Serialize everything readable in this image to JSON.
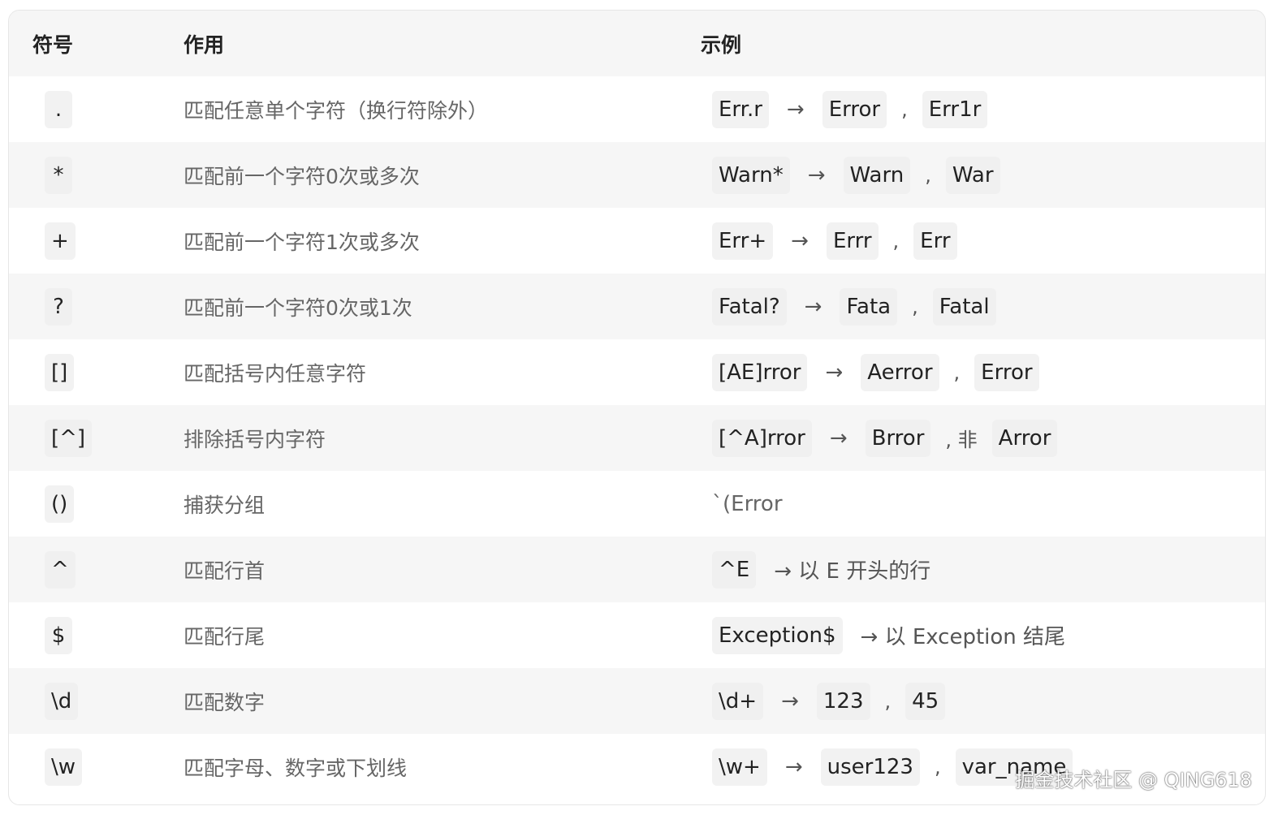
{
  "headers": {
    "symbol": "符号",
    "action": "作用",
    "example": "示例"
  },
  "rows": [
    {
      "symbol": ".",
      "action": "匹配任意单个字符（换行符除外）",
      "example": [
        {
          "t": "code",
          "v": "Err.r"
        },
        {
          "t": "arrow",
          "v": "→"
        },
        {
          "t": "code",
          "v": "Error"
        },
        {
          "t": "comma",
          "v": ","
        },
        {
          "t": "code",
          "v": "Err1r"
        }
      ]
    },
    {
      "symbol": "*",
      "action": "匹配前一个字符0次或多次",
      "example": [
        {
          "t": "code",
          "v": "Warn*"
        },
        {
          "t": "arrow",
          "v": "→"
        },
        {
          "t": "code",
          "v": "Warn"
        },
        {
          "t": "comma",
          "v": ","
        },
        {
          "t": "code",
          "v": "War"
        }
      ]
    },
    {
      "symbol": "+",
      "action": "匹配前一个字符1次或多次",
      "example": [
        {
          "t": "code",
          "v": "Err+"
        },
        {
          "t": "arrow",
          "v": "→"
        },
        {
          "t": "code",
          "v": "Errr"
        },
        {
          "t": "comma",
          "v": ","
        },
        {
          "t": "code",
          "v": "Err"
        }
      ]
    },
    {
      "symbol": "?",
      "action": "匹配前一个字符0次或1次",
      "example": [
        {
          "t": "code",
          "v": "Fatal?"
        },
        {
          "t": "arrow",
          "v": "→"
        },
        {
          "t": "code",
          "v": "Fata"
        },
        {
          "t": "comma",
          "v": ","
        },
        {
          "t": "code",
          "v": "Fatal"
        }
      ]
    },
    {
      "symbol": "[]",
      "action": "匹配括号内任意字符",
      "example": [
        {
          "t": "code",
          "v": "[AE]rror"
        },
        {
          "t": "arrow",
          "v": "→"
        },
        {
          "t": "code",
          "v": "Aerror"
        },
        {
          "t": "comma",
          "v": ","
        },
        {
          "t": "code",
          "v": "Error"
        }
      ]
    },
    {
      "symbol": "[^]",
      "action": "排除括号内字符",
      "example": [
        {
          "t": "code",
          "v": "[^A]rror"
        },
        {
          "t": "arrow",
          "v": "→"
        },
        {
          "t": "code",
          "v": "Brror"
        },
        {
          "t": "comma",
          "v": ", 非"
        },
        {
          "t": "code",
          "v": "Arror"
        }
      ]
    },
    {
      "symbol": "()",
      "action": "捕获分组",
      "example": [
        {
          "t": "plain",
          "v": "`(Error"
        }
      ]
    },
    {
      "symbol": "^",
      "action": "匹配行首",
      "example": [
        {
          "t": "code",
          "v": "^E"
        },
        {
          "t": "text",
          "v": "→ 以 E 开头的行"
        }
      ]
    },
    {
      "symbol": "$",
      "action": "匹配行尾",
      "example": [
        {
          "t": "code",
          "v": "Exception$"
        },
        {
          "t": "text",
          "v": "→ 以 Exception 结尾"
        }
      ]
    },
    {
      "symbol": "\\d",
      "action": "匹配数字",
      "example": [
        {
          "t": "code",
          "v": "\\d+"
        },
        {
          "t": "arrow",
          "v": "→"
        },
        {
          "t": "code",
          "v": "123"
        },
        {
          "t": "comma",
          "v": ","
        },
        {
          "t": "code",
          "v": "45"
        }
      ]
    },
    {
      "symbol": "\\w",
      "action": "匹配字母、数字或下划线",
      "example": [
        {
          "t": "code",
          "v": "\\w+"
        },
        {
          "t": "arrow",
          "v": "→"
        },
        {
          "t": "code",
          "v": "user123"
        },
        {
          "t": "comma",
          "v": ","
        },
        {
          "t": "code",
          "v": "var_name"
        }
      ]
    }
  ],
  "watermark": "掘金技术社区 @ QING618"
}
